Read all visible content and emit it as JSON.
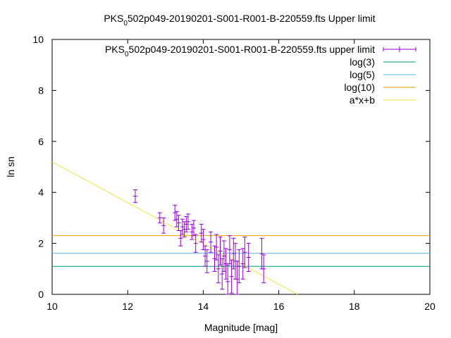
{
  "chart_data": {
    "type": "scatter",
    "title": {
      "main": "PKS",
      "sub": "0",
      "rest": "502p049-20190201-S001-R001-B-220559.fts Upper limit"
    },
    "xlabel": "Magnitude [mag]",
    "ylabel": "ln sn",
    "xlim": [
      10,
      20
    ],
    "ylim": [
      0,
      10
    ],
    "x_ticks": [
      "10",
      "12",
      "14",
      "16",
      "18",
      "20"
    ],
    "y_ticks": [
      "0",
      "2",
      "4",
      "6",
      "8",
      "10"
    ],
    "grid": false,
    "legend_position": "top-right",
    "legend": [
      {
        "name_main": "PKS",
        "name_sub": "0",
        "name_rest": "502p049-20190201-S001-R001-B-220559.fts upper limit",
        "color": "#9400d3",
        "style": "errorbar"
      },
      {
        "name": "log(3)",
        "color": "#009e73",
        "style": "line"
      },
      {
        "name": "log(5)",
        "color": "#56b4e9",
        "style": "line"
      },
      {
        "name": "log(10)",
        "color": "#e69f00",
        "style": "line"
      },
      {
        "name": "a*x+b",
        "color": "#f0e442",
        "style": "line"
      }
    ],
    "hlines": [
      {
        "name": "log(3)",
        "y": 1.0986,
        "color": "#009e73"
      },
      {
        "name": "log(5)",
        "y": 1.6094,
        "color": "#56b4e9"
      },
      {
        "name": "log(10)",
        "y": 2.3026,
        "color": "#e69f00"
      }
    ],
    "fit_line": {
      "name": "a*x+b",
      "slope": -0.8,
      "intercept": 13.2,
      "color": "#f0e442"
    },
    "series": [
      {
        "color": "#9400d3",
        "points": [
          {
            "x": 12.2,
            "y": 3.85,
            "err": 0.25
          },
          {
            "x": 12.85,
            "y": 3.0,
            "err": 0.2
          },
          {
            "x": 12.95,
            "y": 2.7,
            "err": 0.3
          },
          {
            "x": 13.25,
            "y": 3.2,
            "err": 0.3
          },
          {
            "x": 13.3,
            "y": 2.95,
            "err": 0.3
          },
          {
            "x": 13.35,
            "y": 2.8,
            "err": 0.3
          },
          {
            "x": 13.4,
            "y": 2.2,
            "err": 0.3
          },
          {
            "x": 13.45,
            "y": 2.65,
            "err": 0.3
          },
          {
            "x": 13.5,
            "y": 2.55,
            "err": 0.3
          },
          {
            "x": 13.55,
            "y": 2.75,
            "err": 0.3
          },
          {
            "x": 13.6,
            "y": 2.85,
            "err": 0.3
          },
          {
            "x": 13.7,
            "y": 2.45,
            "err": 0.3
          },
          {
            "x": 13.75,
            "y": 2.6,
            "err": 0.3
          },
          {
            "x": 13.8,
            "y": 2.0,
            "err": 0.35
          },
          {
            "x": 13.95,
            "y": 2.4,
            "err": 0.35
          },
          {
            "x": 14.0,
            "y": 2.15,
            "err": 0.4
          },
          {
            "x": 14.05,
            "y": 1.5,
            "err": 0.4
          },
          {
            "x": 14.1,
            "y": 1.3,
            "err": 0.45
          },
          {
            "x": 14.2,
            "y": 2.05,
            "err": 0.4
          },
          {
            "x": 14.3,
            "y": 1.4,
            "err": 0.5
          },
          {
            "x": 14.35,
            "y": 1.85,
            "err": 0.5
          },
          {
            "x": 14.4,
            "y": 1.0,
            "err": 0.55
          },
          {
            "x": 14.45,
            "y": 1.7,
            "err": 0.55
          },
          {
            "x": 14.5,
            "y": 0.8,
            "err": 0.6
          },
          {
            "x": 14.55,
            "y": 1.5,
            "err": 0.6
          },
          {
            "x": 14.6,
            "y": 1.2,
            "err": 0.6
          },
          {
            "x": 14.65,
            "y": 0.5,
            "err": 0.65
          },
          {
            "x": 14.7,
            "y": 1.75,
            "err": 0.55
          },
          {
            "x": 14.75,
            "y": 0.7,
            "err": 0.65
          },
          {
            "x": 14.8,
            "y": 1.6,
            "err": 0.6
          },
          {
            "x": 14.85,
            "y": 1.3,
            "err": 0.7
          },
          {
            "x": 14.9,
            "y": 0.6,
            "err": 0.7
          },
          {
            "x": 14.95,
            "y": 1.1,
            "err": 0.65
          },
          {
            "x": 15.05,
            "y": 1.2,
            "err": 0.6
          },
          {
            "x": 15.1,
            "y": 1.65,
            "err": 0.6
          },
          {
            "x": 15.2,
            "y": 1.45,
            "err": 0.55
          },
          {
            "x": 15.55,
            "y": 1.6,
            "err": 0.6
          },
          {
            "x": 15.6,
            "y": 1.0,
            "err": 0.55
          }
        ]
      }
    ]
  }
}
